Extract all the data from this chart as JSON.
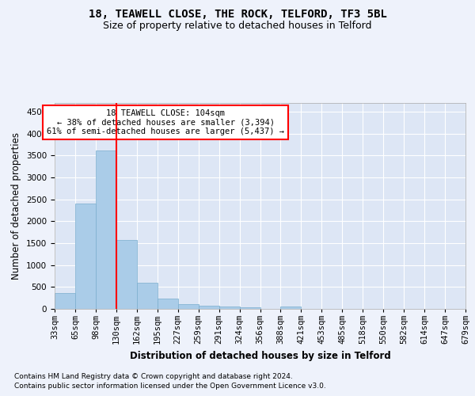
{
  "title": "18, TEAWELL CLOSE, THE ROCK, TELFORD, TF3 5BL",
  "subtitle": "Size of property relative to detached houses in Telford",
  "xlabel": "Distribution of detached houses by size in Telford",
  "ylabel": "Number of detached properties",
  "footnote1": "Contains HM Land Registry data © Crown copyright and database right 2024.",
  "footnote2": "Contains public sector information licensed under the Open Government Licence v3.0.",
  "bar_values": [
    370,
    2400,
    3620,
    1580,
    590,
    230,
    110,
    70,
    50,
    40,
    0,
    60,
    0,
    0,
    0,
    0,
    0,
    0,
    0,
    0
  ],
  "categories": [
    "33sqm",
    "65sqm",
    "98sqm",
    "130sqm",
    "162sqm",
    "195sqm",
    "227sqm",
    "259sqm",
    "291sqm",
    "324sqm",
    "356sqm",
    "388sqm",
    "421sqm",
    "453sqm",
    "485sqm",
    "518sqm",
    "550sqm",
    "582sqm",
    "614sqm",
    "647sqm",
    "679sqm"
  ],
  "bar_color": "#aacce8",
  "bar_edge_color": "#7aaece",
  "line_color": "red",
  "annotation_text": "18 TEAWELL CLOSE: 104sqm\n← 38% of detached houses are smaller (3,394)\n61% of semi-detached houses are larger (5,437) →",
  "annotation_box_color": "white",
  "annotation_box_edge": "red",
  "ylim": [
    0,
    4700
  ],
  "yticks": [
    0,
    500,
    1000,
    1500,
    2000,
    2500,
    3000,
    3500,
    4000,
    4500
  ],
  "background_color": "#eef2fb",
  "plot_bg_color": "#dde6f5",
  "grid_color": "#ffffff",
  "title_fontsize": 10,
  "subtitle_fontsize": 9,
  "axis_label_fontsize": 8.5,
  "tick_fontsize": 7.5,
  "footnote_fontsize": 6.5
}
